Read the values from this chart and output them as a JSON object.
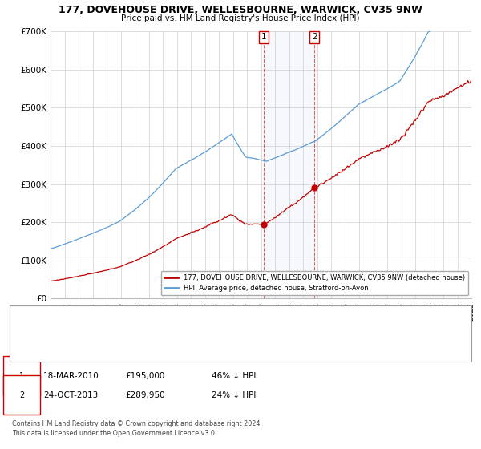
{
  "title1": "177, DOVEHOUSE DRIVE, WELLESBOURNE, WARWICK, CV35 9NW",
  "title2": "Price paid vs. HM Land Registry's House Price Index (HPI)",
  "ylim": [
    0,
    700000
  ],
  "yticks": [
    0,
    100000,
    200000,
    300000,
    400000,
    500000,
    600000,
    700000
  ],
  "ytick_labels": [
    "£0",
    "£100K",
    "£200K",
    "£300K",
    "£400K",
    "£500K",
    "£600K",
    "£700K"
  ],
  "sale1_date": 2010.21,
  "sale1_price": 195000,
  "sale1_label": "18-MAR-2010",
  "sale1_price_str": "£195,000",
  "sale1_hpi": "46% ↓ HPI",
  "sale2_date": 2013.81,
  "sale2_price": 289950,
  "sale2_label": "24-OCT-2013",
  "sale2_price_str": "£289,950",
  "sale2_hpi": "24% ↓ HPI",
  "hpi_color": "#5b9bd5",
  "price_color": "#c00000",
  "legend1": "177, DOVEHOUSE DRIVE, WELLESBOURNE, WARWICK, CV35 9NW (detached house)",
  "legend2": "HPI: Average price, detached house, Stratford-on-Avon",
  "footnote": "Contains HM Land Registry data © Crown copyright and database right 2024.\nThis data is licensed under the Open Government Licence v3.0.",
  "xstart": 1995,
  "xend": 2025
}
